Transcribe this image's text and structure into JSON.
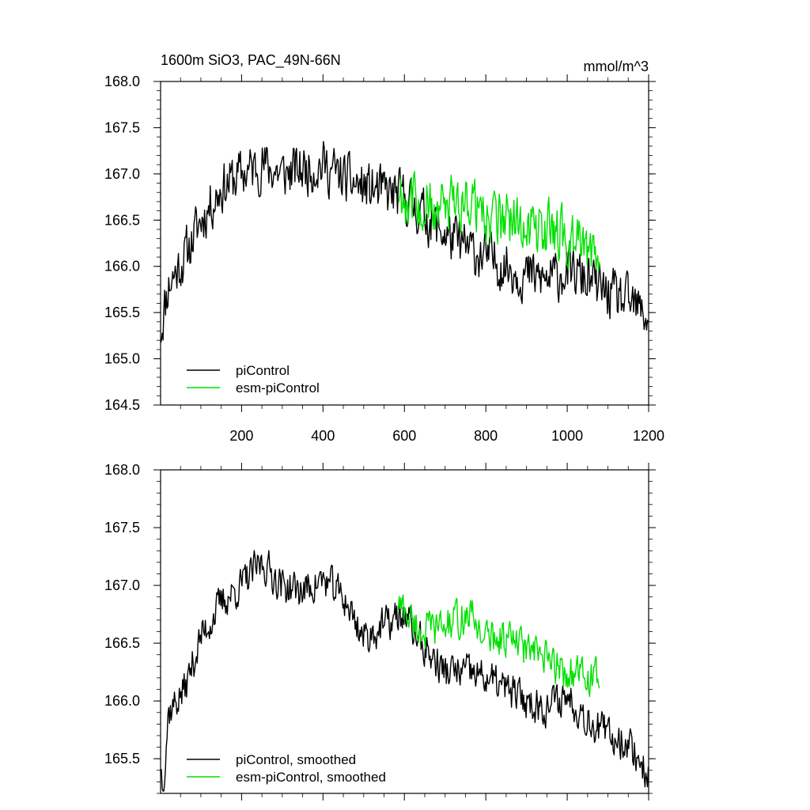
{
  "chart_data": [
    {
      "type": "line",
      "title": "1600m SiO3, PAC_49N-66N",
      "units": "mmol/m^3",
      "xlim": [
        1,
        1200
      ],
      "ylim": [
        164.5,
        168.0
      ],
      "x_ticks": [
        200,
        400,
        600,
        800,
        1000,
        1200
      ],
      "x_tick_labels": [
        "200",
        "400",
        "600",
        "800",
        "1000",
        "1200"
      ],
      "y_ticks": [
        164.5,
        165.0,
        165.5,
        166.0,
        166.5,
        167.0,
        167.5,
        168.0
      ],
      "y_tick_labels": [
        "164.5",
        "165.0",
        "165.5",
        "166.0",
        "166.5",
        "167.0",
        "167.5",
        "168.0"
      ],
      "legend_position": "bottom-left",
      "series": [
        {
          "name": "piControl",
          "color": "#000000",
          "x_range": [
            1,
            1200
          ],
          "noise_amplitude": 0.38,
          "anchors": [
            [
              1,
              165.3
            ],
            [
              20,
              165.8
            ],
            [
              60,
              166.1
            ],
            [
              100,
              166.5
            ],
            [
              150,
              166.85
            ],
            [
              200,
              167.0
            ],
            [
              250,
              167.1
            ],
            [
              300,
              167.0
            ],
            [
              350,
              167.05
            ],
            [
              400,
              167.1
            ],
            [
              450,
              166.95
            ],
            [
              500,
              166.85
            ],
            [
              550,
              166.8
            ],
            [
              600,
              166.75
            ],
            [
              650,
              166.55
            ],
            [
              700,
              166.35
            ],
            [
              750,
              166.2
            ],
            [
              800,
              166.1
            ],
            [
              850,
              166.0
            ],
            [
              900,
              165.9
            ],
            [
              950,
              165.85
            ],
            [
              1000,
              165.95
            ],
            [
              1050,
              165.85
            ],
            [
              1100,
              165.7
            ],
            [
              1150,
              165.6
            ],
            [
              1200,
              165.45
            ]
          ]
        },
        {
          "name": "esm-piControl",
          "color": "#00e000",
          "x_range": [
            585,
            1080
          ],
          "noise_amplitude": 0.42,
          "anchors": [
            [
              585,
              166.8
            ],
            [
              640,
              166.65
            ],
            [
              700,
              166.6
            ],
            [
              760,
              166.75
            ],
            [
              800,
              166.55
            ],
            [
              850,
              166.5
            ],
            [
              900,
              166.45
            ],
            [
              950,
              166.4
            ],
            [
              1000,
              166.3
            ],
            [
              1050,
              166.2
            ],
            [
              1080,
              166.1
            ]
          ]
        }
      ]
    },
    {
      "type": "line",
      "xlim": [
        1,
        1200
      ],
      "ylim": [
        165.2,
        168.0
      ],
      "y_ticks": [
        165.5,
        166.0,
        166.5,
        167.0,
        167.5,
        168.0
      ],
      "y_tick_labels": [
        "165.5",
        "166.0",
        "166.5",
        "167.0",
        "167.5",
        "168.0"
      ],
      "legend_position": "bottom-left",
      "series": [
        {
          "name": "piControl, smoothed",
          "color": "#000000",
          "x_range": [
            1,
            1200
          ],
          "noise_amplitude": 0.22,
          "anchors": [
            [
              1,
              165.45
            ],
            [
              8,
              165.25
            ],
            [
              20,
              165.9
            ],
            [
              60,
              166.1
            ],
            [
              100,
              166.55
            ],
            [
              150,
              166.85
            ],
            [
              200,
              167.0
            ],
            [
              250,
              167.2
            ],
            [
              300,
              167.0
            ],
            [
              350,
              166.95
            ],
            [
              400,
              167.05
            ],
            [
              450,
              166.9
            ],
            [
              500,
              166.55
            ],
            [
              550,
              166.65
            ],
            [
              600,
              166.75
            ],
            [
              650,
              166.45
            ],
            [
              700,
              166.25
            ],
            [
              750,
              166.25
            ],
            [
              800,
              166.2
            ],
            [
              850,
              166.1
            ],
            [
              900,
              166.0
            ],
            [
              950,
              165.95
            ],
            [
              1000,
              166.05
            ],
            [
              1050,
              165.85
            ],
            [
              1100,
              165.7
            ],
            [
              1150,
              165.65
            ],
            [
              1200,
              165.35
            ]
          ]
        },
        {
          "name": "esm-piControl, smoothed",
          "color": "#00e000",
          "x_range": [
            585,
            1080
          ],
          "noise_amplitude": 0.22,
          "anchors": [
            [
              585,
              166.85
            ],
            [
              640,
              166.6
            ],
            [
              700,
              166.65
            ],
            [
              760,
              166.75
            ],
            [
              800,
              166.55
            ],
            [
              850,
              166.55
            ],
            [
              900,
              166.45
            ],
            [
              950,
              166.35
            ],
            [
              1000,
              166.25
            ],
            [
              1050,
              166.2
            ],
            [
              1080,
              166.2
            ]
          ]
        }
      ]
    }
  ]
}
